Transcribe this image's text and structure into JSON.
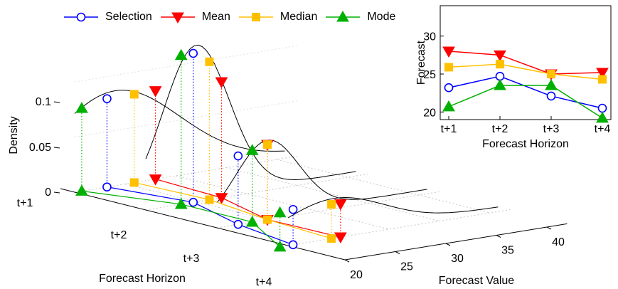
{
  "chart_data": [
    {
      "type": "line",
      "subtype": "3d-density-waterfall",
      "legend": {
        "placement": "top-left",
        "entries": [
          "Selection",
          "Mean",
          "Median",
          "Mode"
        ]
      },
      "xlabel": "Forecast Horizon",
      "ylabel": "Forecast Value",
      "zlabel": "Density",
      "x_ticks": [
        "t+1",
        "t+2",
        "t+3",
        "t+4"
      ],
      "y_ticks": [
        "20",
        "25",
        "30",
        "35",
        "40"
      ],
      "z_ticks": [
        "0",
        "0.05",
        "0.1"
      ],
      "ylim": [
        20,
        42
      ],
      "zlim": [
        0,
        0.12
      ],
      "grid": true,
      "series": [
        {
          "name": "Selection",
          "color": "#0000ff",
          "marker": "circle",
          "values": [
            23.2,
            24.7,
            22.1,
            20.5
          ],
          "density": [
            0.08,
            0.135,
            0.062,
            0.032
          ]
        },
        {
          "name": "Mean",
          "color": "#ff0000",
          "marker": "triangle-down",
          "values": [
            28.0,
            27.5,
            25.0,
            25.2
          ],
          "density": [
            0.08,
            0.105,
            0.068,
            0.03
          ]
        },
        {
          "name": "Median",
          "color": "#ffc000",
          "marker": "square",
          "values": [
            25.9,
            26.3,
            25.0,
            24.3
          ],
          "density": [
            0.08,
            0.125,
            0.068,
            0.031
          ]
        },
        {
          "name": "Mode",
          "color": "#00b000",
          "marker": "triangle-up",
          "values": [
            20.7,
            23.5,
            23.5,
            19.2
          ],
          "density": [
            0.075,
            0.135,
            0.065,
            0.031
          ]
        }
      ]
    },
    {
      "type": "line",
      "xlabel": "Forecast Horizon",
      "ylabel": "Forecast",
      "categories": [
        "t+1",
        "t+2",
        "t+3",
        "t+4"
      ],
      "y_ticks": [
        "20",
        "25",
        "30"
      ],
      "ylim": [
        19,
        34
      ],
      "series": [
        {
          "name": "Selection",
          "color": "#0000ff",
          "marker": "circle",
          "values": [
            23.2,
            24.7,
            22.1,
            20.5
          ]
        },
        {
          "name": "Mean",
          "color": "#ff0000",
          "marker": "triangle-down",
          "values": [
            28.0,
            27.5,
            25.0,
            25.2
          ]
        },
        {
          "name": "Median",
          "color": "#ffc000",
          "marker": "square",
          "values": [
            25.9,
            26.3,
            25.0,
            24.3
          ]
        },
        {
          "name": "Mode",
          "color": "#00b000",
          "marker": "triangle-up",
          "values": [
            20.7,
            23.5,
            23.5,
            19.2
          ]
        }
      ]
    }
  ]
}
